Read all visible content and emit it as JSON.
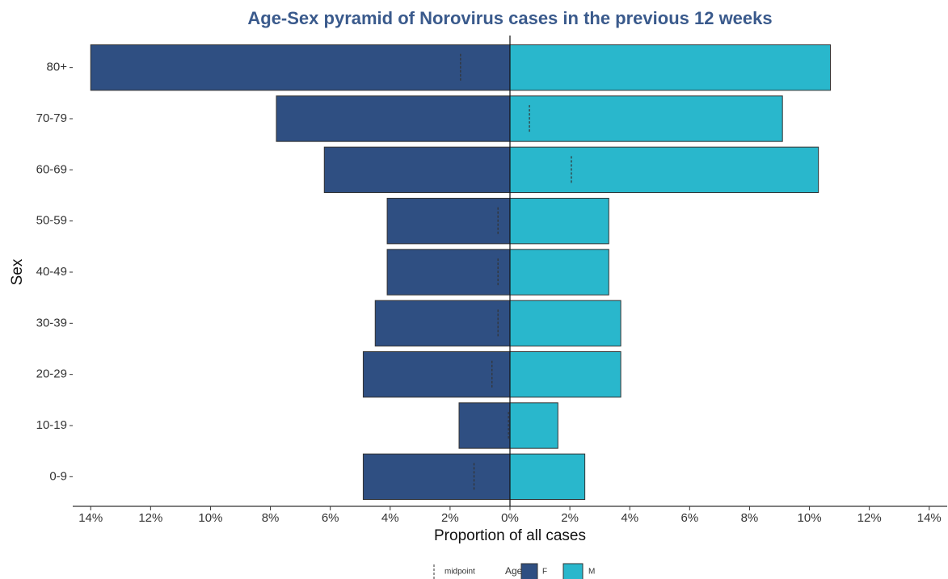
{
  "chart_data": {
    "type": "pyramid",
    "title": "Age-Sex pyramid of Norovirus cases in the previous 12 weeks",
    "x_label": "Proportion of all cases",
    "y_label": "Sex",
    "legend_title": "Age",
    "categories": [
      "0-9",
      "10-19",
      "20-29",
      "30-39",
      "40-49",
      "50-59",
      "60-69",
      "70-79",
      "80+"
    ],
    "series": [
      {
        "name": "F",
        "color": "#2f4f82",
        "values": [
          -4.9,
          -1.7,
          -4.9,
          -4.5,
          -4.1,
          -4.1,
          -6.2,
          -7.8,
          -14.0
        ]
      },
      {
        "name": "M",
        "color": "#29b7cc",
        "values": [
          2.5,
          1.6,
          3.7,
          3.7,
          3.3,
          3.3,
          10.3,
          9.1,
          10.7
        ]
      },
      {
        "name": "midpoint",
        "color": "#333333",
        "values": [
          -1.2,
          -0.05,
          -0.6,
          -0.4,
          -0.4,
          -0.4,
          2.05,
          0.65,
          -1.65
        ]
      }
    ],
    "xlim": [
      -14.6,
      14.6
    ],
    "xticks": [
      {
        "value": -14,
        "label": "14%"
      },
      {
        "value": -12,
        "label": "12%"
      },
      {
        "value": -10,
        "label": "10%"
      },
      {
        "value": -8,
        "label": "8%"
      },
      {
        "value": -6,
        "label": "6%"
      },
      {
        "value": -4,
        "label": "4%"
      },
      {
        "value": -2,
        "label": "2%"
      },
      {
        "value": 0,
        "label": "0%"
      },
      {
        "value": 2,
        "label": "2%"
      },
      {
        "value": 4,
        "label": "4%"
      },
      {
        "value": 6,
        "label": "6%"
      },
      {
        "value": 8,
        "label": "8%"
      },
      {
        "value": 10,
        "label": "10%"
      },
      {
        "value": 12,
        "label": "12%"
      },
      {
        "value": 14,
        "label": "14%"
      }
    ],
    "grid": false
  }
}
